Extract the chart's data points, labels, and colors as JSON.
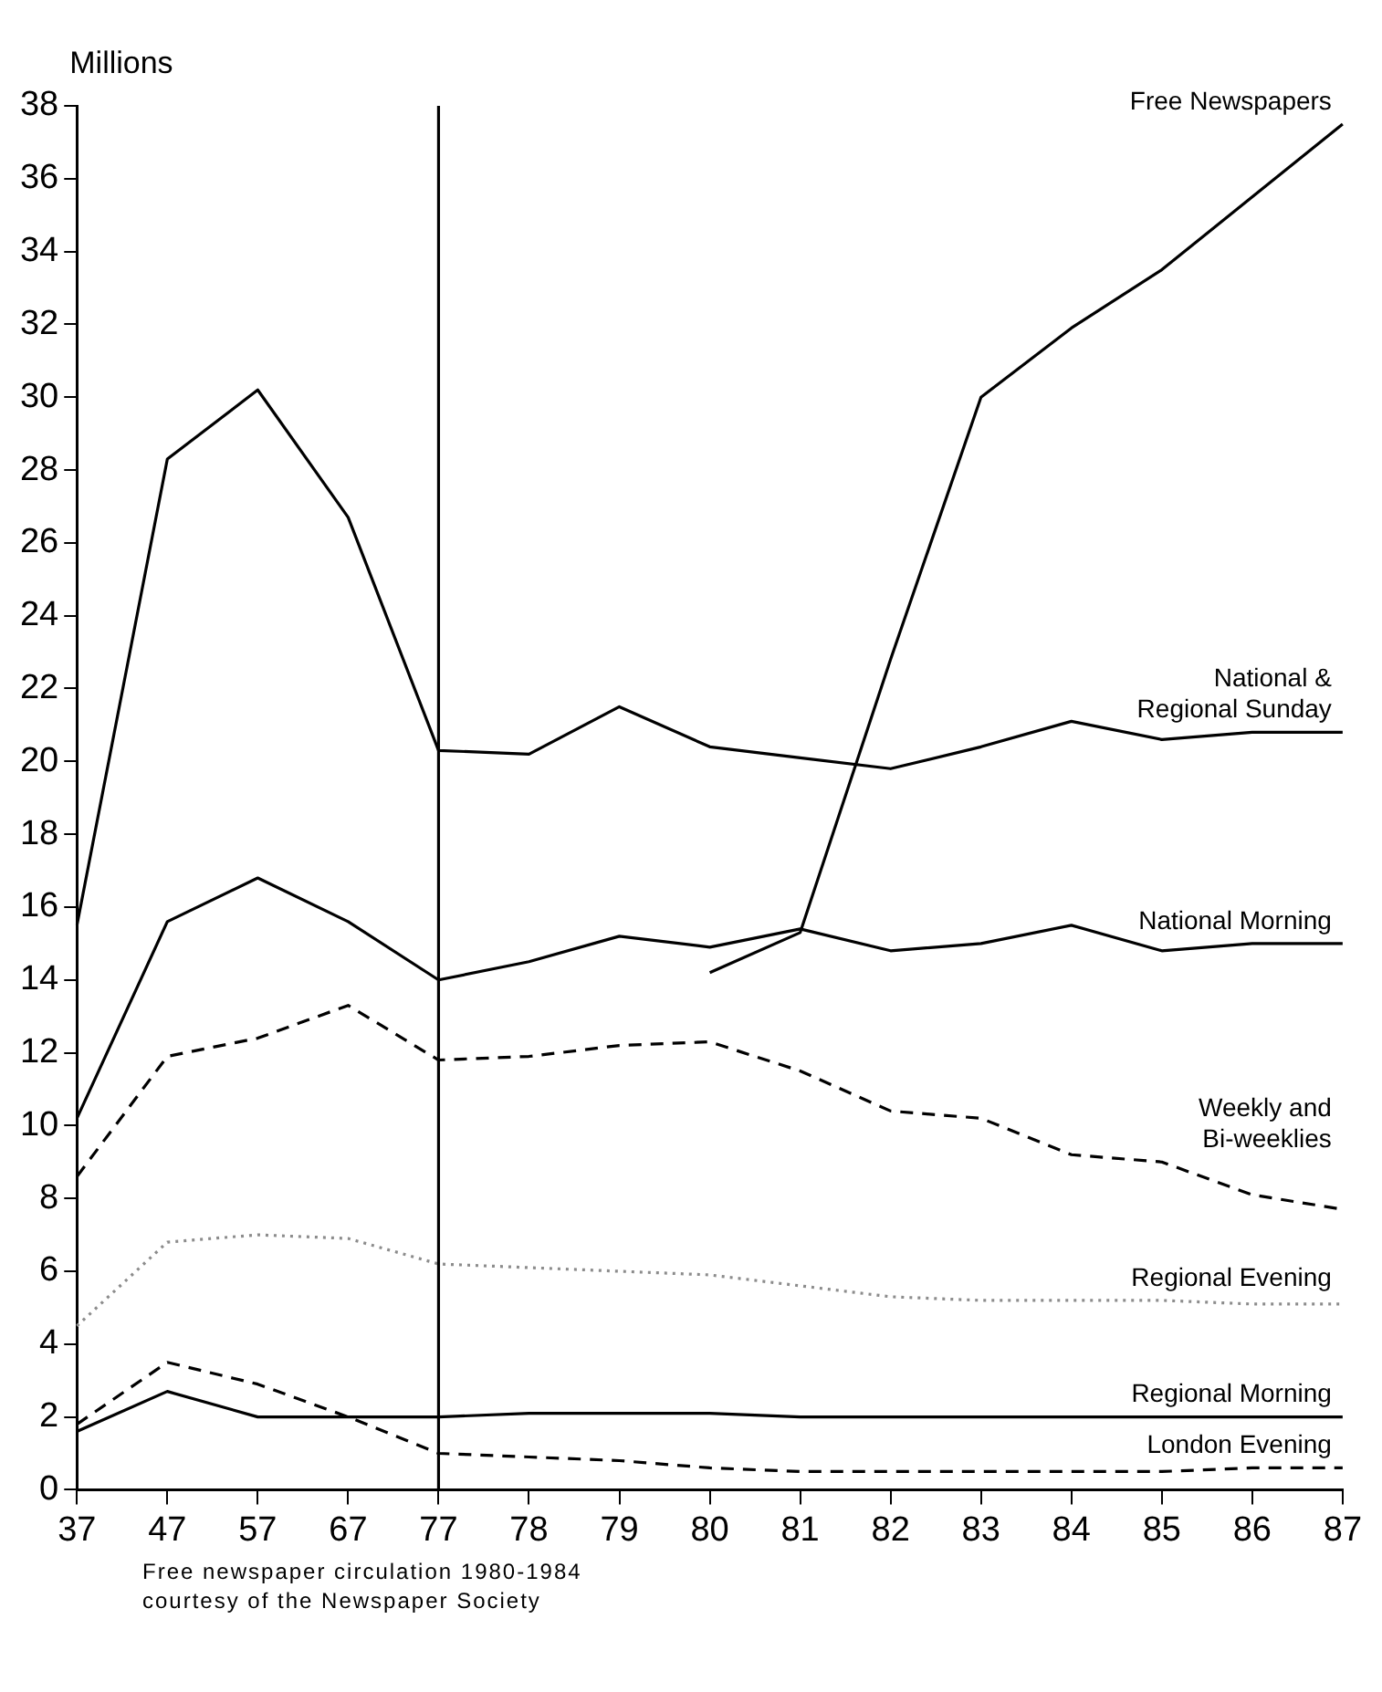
{
  "chart_data": {
    "type": "line",
    "ylabel": "Millions",
    "categories": [
      "37",
      "47",
      "57",
      "67",
      "77",
      "78",
      "79",
      "80",
      "81",
      "82",
      "83",
      "84",
      "85",
      "86",
      "87"
    ],
    "series": [
      {
        "name": "Free Newspapers",
        "color": "#000000",
        "line_style": "solid",
        "values": [
          null,
          null,
          null,
          null,
          null,
          null,
          null,
          14.2,
          15.3,
          22.8,
          30.0,
          31.9,
          33.5,
          35.5,
          37.5
        ]
      },
      {
        "name": "National & Regional Sunday",
        "color": "#000000",
        "line_style": "solid",
        "values": [
          15.5,
          28.3,
          30.2,
          26.7,
          20.3,
          20.2,
          21.5,
          20.4,
          20.1,
          19.8,
          20.4,
          21.1,
          20.6,
          20.8,
          20.8
        ]
      },
      {
        "name": "National Morning",
        "color": "#000000",
        "line_style": "solid",
        "values": [
          10.2,
          15.6,
          16.8,
          15.6,
          14.0,
          14.5,
          15.2,
          14.9,
          15.4,
          14.8,
          15.0,
          15.5,
          14.8,
          15.0,
          15.0
        ]
      },
      {
        "name": "Weekly and Bi-weeklies",
        "color": "#000000",
        "line_style": "dashed",
        "values": [
          8.6,
          11.9,
          12.4,
          13.3,
          11.8,
          11.9,
          12.2,
          12.3,
          11.5,
          10.4,
          10.2,
          9.2,
          9.0,
          8.1,
          7.7
        ]
      },
      {
        "name": "Regional Evening",
        "color": "#8c8c8c",
        "line_style": "dotted",
        "values": [
          4.5,
          6.8,
          7.0,
          6.9,
          6.2,
          6.1,
          6.0,
          5.9,
          5.6,
          5.3,
          5.2,
          5.2,
          5.2,
          5.1,
          5.1
        ]
      },
      {
        "name": "Regional Morning",
        "color": "#000000",
        "line_style": "solid",
        "values": [
          1.6,
          2.7,
          2.0,
          2.0,
          2.0,
          2.1,
          2.1,
          2.1,
          2.0,
          2.0,
          2.0,
          2.0,
          2.0,
          2.0,
          2.0
        ]
      },
      {
        "name": "London Evening",
        "color": "#000000",
        "line_style": "dashed",
        "values": [
          1.8,
          3.5,
          2.9,
          2.0,
          1.0,
          0.9,
          0.8,
          0.6,
          0.5,
          0.5,
          0.5,
          0.5,
          0.5,
          0.6,
          0.6
        ]
      }
    ],
    "ylim": [
      0,
      38
    ],
    "yticks": [
      0,
      2,
      4,
      6,
      8,
      10,
      12,
      14,
      16,
      18,
      20,
      22,
      24,
      26,
      28,
      30,
      32,
      34,
      36,
      38
    ],
    "marker": "none",
    "ref_lines": [
      {
        "axis": "x",
        "value": "77",
        "color": "#000000"
      }
    ],
    "annotations": [
      "Free newspaper circulation 1980-1984 courtesy of the Newspaper Society"
    ]
  }
}
